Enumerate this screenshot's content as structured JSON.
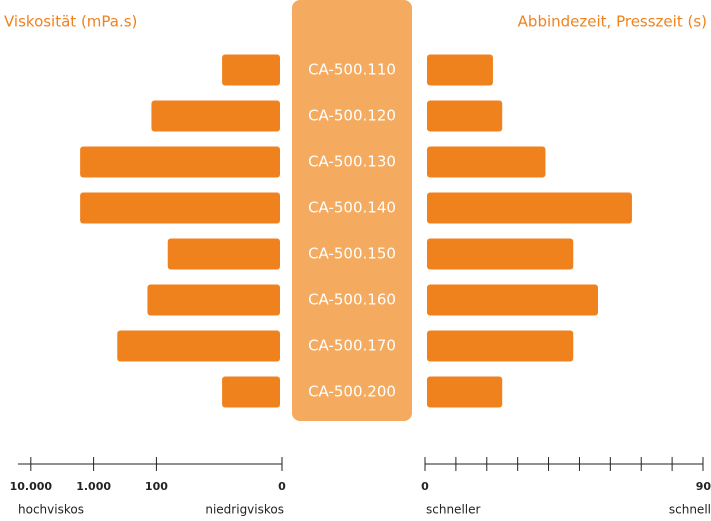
{
  "chart_data": [
    {
      "type": "hbar-left",
      "title": "Viskosität (mPa.s)",
      "categories": [
        "CA-500.110",
        "CA-500.120",
        "CA-500.130",
        "CA-500.140",
        "CA-500.150",
        "CA-500.160",
        "CA-500.170",
        "CA-500.200"
      ],
      "values": [
        9,
        120,
        1640,
        1640,
        66,
        139,
        420,
        9
      ],
      "color": "#f0821e",
      "log_scale": true,
      "xlim": [
        16000,
        1
      ],
      "xticks": [
        {
          "value": 10000,
          "label": "10.000"
        },
        {
          "value": 1000,
          "label": "1.000"
        },
        100
      ],
      "origin_label": "0",
      "axis_left_label": "hochviskos",
      "axis_right_label": "niedrigviskos"
    },
    {
      "type": "hbar-right",
      "title": "Abbindezeit, Presszeit (s)",
      "values": [
        22,
        25,
        39,
        67,
        48,
        56,
        48,
        25
      ],
      "color": "#f0821e",
      "xlim": [
        0,
        90
      ],
      "xticks": [
        0,
        90
      ],
      "minor_ticks": [
        10,
        20,
        30,
        40,
        50,
        60,
        70,
        80
      ],
      "axis_left_label": "schneller",
      "axis_right_label": "schnell"
    }
  ]
}
